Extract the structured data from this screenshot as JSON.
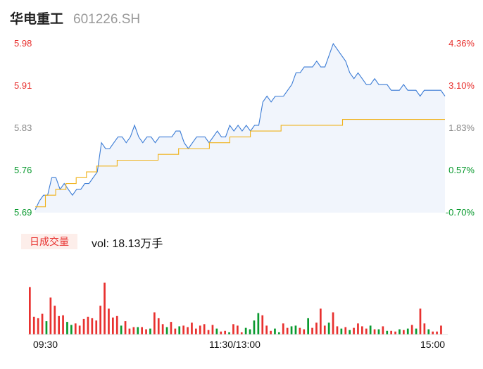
{
  "header": {
    "name": "华电重工",
    "code": "601226.SH"
  },
  "price_axis": {
    "labels": [
      "5.98",
      "5.91",
      "5.83",
      "5.76",
      "5.69"
    ]
  },
  "pct_axis": {
    "labels": [
      "4.36%",
      "3.10%",
      "1.83%",
      "0.57%",
      "-0.70%"
    ]
  },
  "volume": {
    "tag": "日成交量",
    "text": "vol: 18.13万手"
  },
  "time_axis": {
    "labels": [
      "09:30",
      "11:30/13:00",
      "15:00"
    ]
  },
  "colors": {
    "price_line": "#3a7bd5",
    "avg_line": "#f0b21a",
    "up": "#e8312f",
    "down": "#0a9a2f",
    "neutral": "#888888"
  },
  "chart_data": [
    {
      "type": "line",
      "series": [
        {
          "values": [
            5.695,
            5.71,
            5.72,
            5.72,
            5.75,
            5.75,
            5.73,
            5.74,
            5.73,
            5.72,
            5.73,
            5.73,
            5.74,
            5.74,
            5.75,
            5.76,
            5.81,
            5.8,
            5.8,
            5.81,
            5.82,
            5.82,
            5.81,
            5.82,
            5.84,
            5.82,
            5.81,
            5.82,
            5.82,
            5.81,
            5.82,
            5.82,
            5.82,
            5.82,
            5.83,
            5.83,
            5.81,
            5.8,
            5.81,
            5.82,
            5.82,
            5.82,
            5.81,
            5.82,
            5.83,
            5.82,
            5.82,
            5.84,
            5.83,
            5.84,
            5.83,
            5.84,
            5.83,
            5.84,
            5.84,
            5.88,
            5.89,
            5.88,
            5.89,
            5.89,
            5.89,
            5.9,
            5.91,
            5.93,
            5.93,
            5.94,
            5.94,
            5.94,
            5.95,
            5.94,
            5.94,
            5.96,
            5.98,
            5.97,
            5.96,
            5.95,
            5.93,
            5.92,
            5.93,
            5.92,
            5.91,
            5.91,
            5.92,
            5.91,
            5.91,
            5.91,
            5.9,
            5.9,
            5.9,
            5.91,
            5.9,
            5.9,
            5.9,
            5.89,
            5.9,
            5.9,
            5.9,
            5.9,
            5.9,
            5.89
          ],
          "x_range": [
            0,
            100
          ]
        },
        {
          "values": [
            5.7,
            5.72,
            5.73,
            5.74,
            5.75,
            5.76,
            5.77,
            5.77,
            5.78,
            5.78,
            5.78,
            5.78,
            5.79,
            5.79,
            5.8,
            5.8,
            5.8,
            5.81,
            5.81,
            5.82,
            5.82,
            5.83,
            5.83,
            5.83,
            5.84,
            5.84,
            5.84,
            5.84,
            5.84,
            5.84,
            5.85,
            5.85,
            5.85,
            5.85,
            5.85,
            5.85,
            5.85,
            5.85,
            5.85,
            5.85,
            5.85
          ],
          "x_range": [
            0,
            100
          ]
        }
      ],
      "ylim": [
        5.69,
        5.98
      ]
    },
    {
      "type": "bar",
      "volumes": [
        64,
        24,
        22,
        28,
        18,
        50,
        39,
        25,
        26,
        17,
        13,
        15,
        12,
        21,
        24,
        22,
        19,
        39,
        70,
        35,
        23,
        25,
        12,
        18,
        8,
        10,
        10,
        10,
        7,
        8,
        30,
        22,
        14,
        10,
        17,
        8,
        11,
        12,
        10,
        16,
        8,
        12,
        14,
        6,
        13,
        8,
        4,
        5,
        3,
        14,
        12,
        3,
        9,
        7,
        19,
        29,
        26,
        12,
        5,
        8,
        3,
        15,
        9,
        11,
        12,
        9,
        7,
        22,
        9,
        16,
        35,
        12,
        16,
        30,
        11,
        8,
        10,
        6,
        9,
        15,
        11,
        8,
        12,
        7,
        7,
        11,
        5,
        5,
        4,
        7,
        6,
        8,
        13,
        8,
        35,
        15,
        7,
        4,
        4,
        12
      ],
      "up": [
        true,
        true,
        true,
        true,
        false,
        true,
        true,
        true,
        true,
        false,
        false,
        true,
        true,
        true,
        true,
        true,
        true,
        true,
        true,
        true,
        true,
        true,
        false,
        true,
        true,
        true,
        false,
        true,
        true,
        false,
        true,
        true,
        true,
        false,
        true,
        true,
        false,
        true,
        true,
        true,
        true,
        true,
        true,
        true,
        true,
        false,
        true,
        true,
        false,
        true,
        true,
        true,
        false,
        false,
        false,
        false,
        true,
        true,
        true,
        false,
        false,
        true,
        true,
        false,
        false,
        true,
        true,
        false,
        true,
        true,
        true,
        true,
        false,
        true,
        true,
        false,
        true,
        false,
        true,
        true,
        true,
        true,
        false,
        true,
        false,
        true,
        false,
        true,
        true,
        false,
        true,
        false,
        true,
        false,
        true,
        true,
        false,
        true,
        true,
        true
      ],
      "x_range": [
        0,
        100
      ]
    }
  ]
}
